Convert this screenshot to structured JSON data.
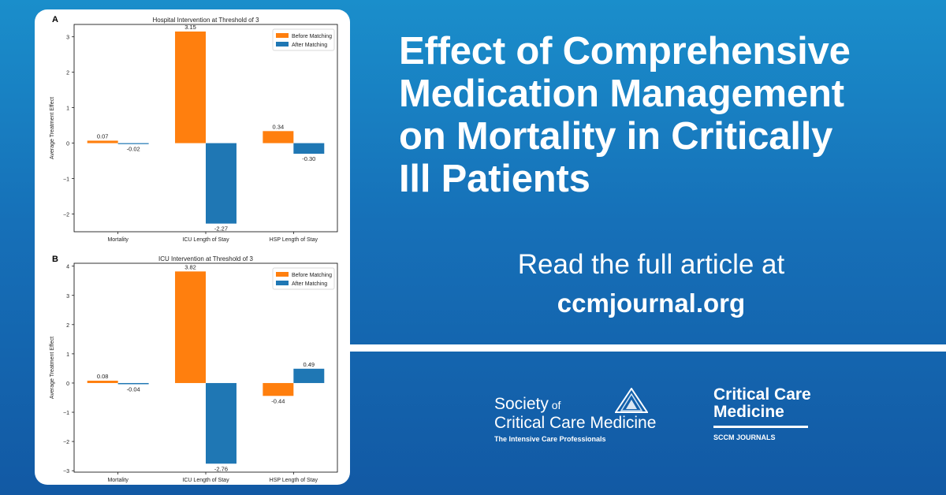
{
  "headline": [
    "Effect of Comprehensive",
    "Medication Management",
    "on Mortality in Critically",
    "Ill Patients"
  ],
  "cta": {
    "line1": "Read the full article at",
    "line2": "ccmjournal.org"
  },
  "sccm": {
    "society": "Society",
    "of": "of",
    "name": "Critical Care Medicine",
    "tagline": "The Intensive Care Professionals"
  },
  "journal": {
    "line1": "Critical Care",
    "line2": "Medicine",
    "sub": "SCCM JOURNALS"
  },
  "colors": {
    "before": "#ff7f0e",
    "after": "#1f77b4"
  },
  "chart_data": [
    {
      "panel": "A",
      "type": "bar",
      "title": "Hospital Intervention at Threshold of 3",
      "ylabel": "Average Treatment Effect",
      "categories": [
        "Mortality",
        "ICU Length of Stay",
        "HSP Length of Stay"
      ],
      "series": [
        {
          "name": "Before Matching",
          "values": [
            0.07,
            3.15,
            0.34
          ],
          "labels": [
            "0.07",
            "3.15",
            "0.34"
          ]
        },
        {
          "name": "After Matching",
          "values": [
            -0.02,
            -2.27,
            -0.3
          ],
          "labels": [
            "-0.02",
            "-2.27",
            "-0.30"
          ]
        }
      ],
      "ylim": [
        -2.5,
        3.35
      ],
      "yticks": [
        -2,
        -1,
        0,
        1,
        2,
        3
      ],
      "ytick_labels": [
        "−2",
        "−1",
        "0",
        "1",
        "2",
        "3"
      ],
      "legend": "top-right"
    },
    {
      "panel": "B",
      "type": "bar",
      "title": "ICU Intervention at Threshold of 3",
      "ylabel": "Average Treatment Effect",
      "categories": [
        "Mortality",
        "ICU Length of Stay",
        "HSP Length of Stay"
      ],
      "series": [
        {
          "name": "Before Matching",
          "values": [
            0.08,
            3.82,
            -0.44
          ],
          "labels": [
            "0.08",
            "3.82",
            "-0.44"
          ]
        },
        {
          "name": "After Matching",
          "values": [
            -0.04,
            -2.76,
            0.49
          ],
          "labels": [
            "-0.04",
            "-2.76",
            "0.49"
          ]
        }
      ],
      "ylim": [
        -3.05,
        4.1
      ],
      "yticks": [
        -3,
        -2,
        -1,
        0,
        1,
        2,
        3,
        4
      ],
      "ytick_labels": [
        "−3",
        "−2",
        "−1",
        "0",
        "1",
        "2",
        "3",
        "4"
      ],
      "legend": "top-right"
    }
  ]
}
